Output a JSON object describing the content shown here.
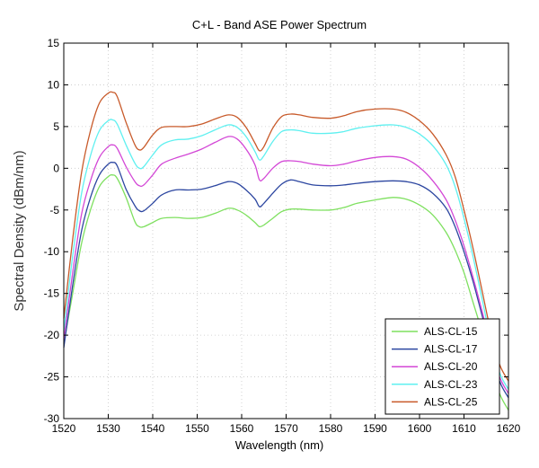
{
  "chart_data": {
    "type": "line",
    "title": "C+L - Band ASE Power Spectrum",
    "xlabel": "Wavelength (nm)",
    "ylabel": "Spectral Density (dBm/nm)",
    "xlim": [
      1520,
      1620
    ],
    "ylim": [
      -30,
      15
    ],
    "xticks": [
      1520,
      1530,
      1540,
      1550,
      1560,
      1570,
      1580,
      1590,
      1600,
      1610,
      1620
    ],
    "yticks": [
      15,
      10,
      5,
      0,
      -5,
      -10,
      -15,
      -20,
      -25,
      -30
    ],
    "grid": true,
    "legend_position": "bottom-right",
    "series": [
      {
        "name": "ALS-CL-15",
        "color": "#7ee05f",
        "x": [
          1520,
          1522,
          1524,
          1526,
          1528,
          1530,
          1531,
          1532,
          1534,
          1536,
          1537,
          1538,
          1540,
          1542,
          1545,
          1548,
          1551,
          1554,
          1557,
          1559,
          1561,
          1563,
          1564,
          1565,
          1567,
          1569,
          1571,
          1573,
          1576,
          1580,
          1583,
          1586,
          1590,
          1594,
          1597,
          1600,
          1603,
          1606,
          1608,
          1610,
          1612,
          1614,
          1616,
          1618,
          1620
        ],
        "y": [
          -21,
          -15,
          -9,
          -5,
          -2.2,
          -1,
          -0.8,
          -1.2,
          -3.5,
          -6.4,
          -7,
          -7,
          -6.5,
          -6,
          -5.9,
          -6,
          -5.9,
          -5.4,
          -4.8,
          -5,
          -5.6,
          -6.5,
          -7,
          -6.8,
          -6,
          -5.2,
          -4.9,
          -4.9,
          -5,
          -5,
          -4.7,
          -4.2,
          -3.8,
          -3.5,
          -3.7,
          -4.4,
          -5.6,
          -7.7,
          -9.8,
          -12.5,
          -16,
          -19.5,
          -23.5,
          -27,
          -29
        ]
      },
      {
        "name": "ALS-CL-17",
        "color": "#2c46a0",
        "x": [
          1520,
          1522,
          1524,
          1526,
          1528,
          1530,
          1531,
          1532,
          1534,
          1536,
          1537,
          1538,
          1540,
          1542,
          1545,
          1548,
          1551,
          1554,
          1557,
          1559,
          1561,
          1563,
          1564,
          1565,
          1567,
          1569,
          1571,
          1573,
          1576,
          1580,
          1583,
          1586,
          1590,
          1594,
          1597,
          1600,
          1603,
          1606,
          1608,
          1610,
          1612,
          1614,
          1616,
          1618,
          1620
        ],
        "y": [
          -21.5,
          -14,
          -7.5,
          -3.5,
          -0.8,
          0.5,
          0.7,
          0.3,
          -2.5,
          -4.5,
          -5.1,
          -5.1,
          -4.2,
          -3.2,
          -2.6,
          -2.6,
          -2.5,
          -2.1,
          -1.6,
          -1.8,
          -2.6,
          -3.7,
          -4.6,
          -4.2,
          -3,
          -1.9,
          -1.4,
          -1.6,
          -2,
          -2.1,
          -2,
          -1.8,
          -1.6,
          -1.5,
          -1.6,
          -2,
          -3,
          -4.8,
          -7,
          -10,
          -13.5,
          -17.5,
          -21.5,
          -25.5,
          -27.5
        ]
      },
      {
        "name": "ALS-CL-20",
        "color": "#d347d6",
        "x": [
          1520,
          1522,
          1524,
          1526,
          1528,
          1530,
          1531,
          1532,
          1534,
          1536,
          1537,
          1538,
          1540,
          1542,
          1545,
          1548,
          1551,
          1554,
          1557,
          1559,
          1561,
          1563,
          1564,
          1565,
          1567,
          1569,
          1571,
          1573,
          1576,
          1580,
          1583,
          1586,
          1590,
          1594,
          1597,
          1600,
          1603,
          1606,
          1608,
          1610,
          1612,
          1614,
          1616,
          1618,
          1620
        ],
        "y": [
          -20.5,
          -12.5,
          -5.5,
          -1.5,
          1.3,
          2.6,
          2.8,
          2.4,
          0.2,
          -1.6,
          -2.1,
          -2,
          -0.8,
          0.5,
          1.2,
          1.7,
          2.3,
          3.1,
          3.8,
          3.5,
          2.3,
          0.4,
          -1.4,
          -1.2,
          0,
          0.8,
          0.9,
          0.8,
          0.5,
          0.3,
          0.5,
          0.9,
          1.3,
          1.4,
          1.1,
          0.1,
          -1.5,
          -3.8,
          -6.2,
          -9.3,
          -13,
          -17,
          -21.2,
          -25,
          -27
        ]
      },
      {
        "name": "ALS-CL-23",
        "color": "#5ff0f0",
        "x": [
          1520,
          1522,
          1524,
          1526,
          1528,
          1530,
          1531,
          1532,
          1534,
          1536,
          1537,
          1538,
          1540,
          1542,
          1545,
          1548,
          1551,
          1554,
          1557,
          1559,
          1561,
          1563,
          1564,
          1565,
          1567,
          1569,
          1571,
          1573,
          1576,
          1580,
          1583,
          1586,
          1590,
          1594,
          1597,
          1600,
          1603,
          1606,
          1608,
          1610,
          1612,
          1614,
          1616,
          1618,
          1620
        ],
        "y": [
          -19.5,
          -10.5,
          -3,
          1.5,
          4.5,
          5.7,
          5.8,
          5.3,
          2.8,
          0.6,
          0,
          0.2,
          1.6,
          2.8,
          3.4,
          3.5,
          3.9,
          4.6,
          5.2,
          4.9,
          3.8,
          2,
          1,
          1.5,
          3.2,
          4.4,
          4.6,
          4.5,
          4.2,
          4.2,
          4.4,
          4.8,
          5.1,
          5.2,
          4.9,
          4.1,
          2.7,
          0.4,
          -2.2,
          -6,
          -10.5,
          -15.5,
          -20.5,
          -24.5,
          -26.5
        ]
      },
      {
        "name": "ALS-CL-25",
        "color": "#c85a2a",
        "x": [
          1520,
          1522,
          1524,
          1526,
          1528,
          1530,
          1531,
          1532,
          1534,
          1536,
          1537,
          1538,
          1540,
          1542,
          1545,
          1548,
          1551,
          1554,
          1557,
          1559,
          1561,
          1563,
          1564,
          1565,
          1567,
          1569,
          1571,
          1573,
          1576,
          1580,
          1583,
          1586,
          1590,
          1594,
          1597,
          1600,
          1603,
          1606,
          1608,
          1610,
          1612,
          1614,
          1616,
          1618,
          1620
        ],
        "y": [
          -18,
          -8.5,
          -0.5,
          4.5,
          7.8,
          9,
          9.1,
          8.6,
          5.5,
          2.8,
          2.2,
          2.5,
          4,
          4.9,
          5,
          5,
          5.3,
          5.9,
          6.4,
          6.1,
          4.9,
          3,
          2.1,
          2.6,
          4.8,
          6.2,
          6.5,
          6.4,
          6.1,
          6,
          6.3,
          6.8,
          7.1,
          7.1,
          6.7,
          5.7,
          4.1,
          1.6,
          -1,
          -5,
          -9.5,
          -14.5,
          -19.5,
          -23.5,
          -25.5
        ]
      }
    ]
  }
}
